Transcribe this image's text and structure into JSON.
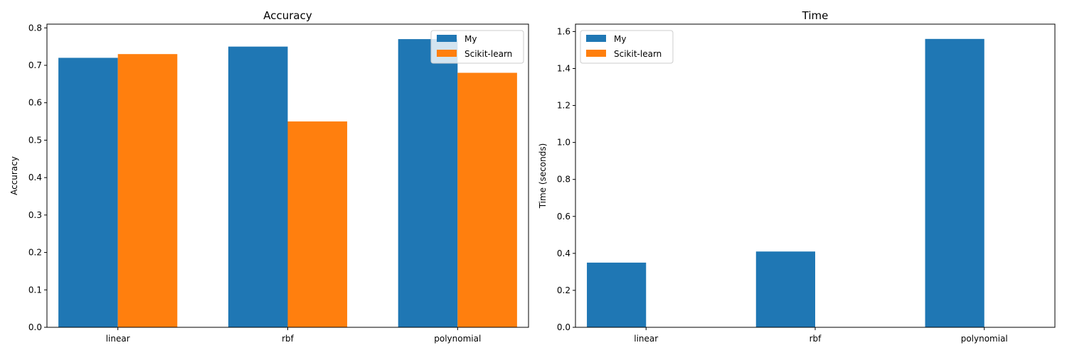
{
  "chart_data": [
    {
      "type": "bar",
      "title": "Accuracy",
      "xlabel": "",
      "ylabel": "Accuracy",
      "categories": [
        "linear",
        "rbf",
        "polynomial"
      ],
      "series": [
        {
          "name": "My",
          "values": [
            0.72,
            0.75,
            0.77
          ],
          "color": "#1f77b4"
        },
        {
          "name": "Scikit-learn",
          "values": [
            0.73,
            0.55,
            0.68
          ],
          "color": "#ff7f0e"
        }
      ],
      "ylim": [
        0,
        0.81
      ],
      "yticks": [
        0.0,
        0.1,
        0.2,
        0.3,
        0.4,
        0.5,
        0.6,
        0.7,
        0.8
      ],
      "ytick_labels": [
        "0.0",
        "0.1",
        "0.2",
        "0.3",
        "0.4",
        "0.5",
        "0.6",
        "0.7",
        "0.8"
      ],
      "legend": "top-right"
    },
    {
      "type": "bar",
      "title": "Time",
      "xlabel": "",
      "ylabel": "Time (seconds)",
      "categories": [
        "linear",
        "rbf",
        "polynomial"
      ],
      "series": [
        {
          "name": "My",
          "values": [
            0.35,
            0.41,
            1.56
          ],
          "color": "#1f77b4"
        },
        {
          "name": "Scikit-learn",
          "values": [
            0.0,
            0.0,
            0.0
          ],
          "color": "#ff7f0e"
        }
      ],
      "ylim": [
        0,
        1.64
      ],
      "yticks": [
        0.0,
        0.2,
        0.4,
        0.6,
        0.8,
        1.0,
        1.2,
        1.4,
        1.6
      ],
      "ytick_labels": [
        "0.0",
        "0.2",
        "0.4",
        "0.6",
        "0.8",
        "1.0",
        "1.2",
        "1.4",
        "1.6"
      ],
      "legend": "top-left"
    }
  ]
}
